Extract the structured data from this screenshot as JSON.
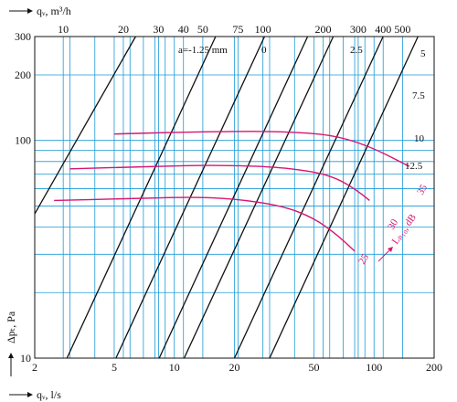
{
  "chart_data": {
    "type": "line",
    "x_axis_bottom": {
      "label": "qᵥ, l/s",
      "scale": "log",
      "range": [
        2,
        200
      ],
      "ticks": [
        2,
        5,
        10,
        20,
        50,
        100,
        200
      ],
      "tick_labels": [
        "2",
        "5",
        "10",
        "20",
        "50",
        "100",
        "200"
      ]
    },
    "x_axis_top": {
      "label": "qᵥ, m³/h",
      "scale": "log",
      "ticks": [
        10,
        20,
        30,
        40,
        50,
        75,
        100,
        200,
        300,
        400,
        500
      ],
      "tick_labels": [
        "10",
        "20",
        "30",
        "40",
        "50",
        "75",
        "100",
        "200",
        "300",
        "400",
        "500"
      ]
    },
    "y_axis": {
      "label": "Δpₜ, Pa",
      "scale": "log",
      "range": [
        10,
        300
      ],
      "ticks": [
        10,
        100,
        200,
        300
      ],
      "tick_labels": [
        "10",
        "100",
        "200",
        "300"
      ]
    },
    "grid": true,
    "damper_lines": {
      "label_prefix": "a=",
      "unit_label": "mm",
      "series": [
        {
          "name": "a=-1.25 mm",
          "points": [
            [
              2,
              46
            ],
            [
              6.4,
              300
            ]
          ]
        },
        {
          "name": "0",
          "points": [
            [
              2.9,
              10
            ],
            [
              16.1,
              300
            ]
          ]
        },
        {
          "name": "2.5",
          "points": [
            [
              5.1,
              10
            ],
            [
              28.3,
              300
            ]
          ]
        },
        {
          "name": "5",
          "points": [
            [
              8.4,
              10
            ],
            [
              46.5,
              300
            ]
          ]
        },
        {
          "name": "7.5",
          "points": [
            [
              11.2,
              10
            ],
            [
              62.5,
              300
            ]
          ]
        },
        {
          "name": "10",
          "points": [
            [
              20,
              10
            ],
            [
              111,
              300
            ]
          ]
        },
        {
          "name": "12.5",
          "points": [
            [
              30,
              10
            ],
            [
              166,
              300
            ]
          ]
        }
      ],
      "labels": [
        "a=-1.25 mm",
        "0",
        "2.5",
        "5",
        "7.5",
        "10",
        "12.5"
      ]
    },
    "sound_curves": {
      "label": "Lₚ₁₀, dB",
      "series": [
        {
          "name": "35",
          "points": [
            [
              5,
              107
            ],
            [
              10,
              109
            ],
            [
              20,
              110
            ],
            [
              30,
              110
            ],
            [
              50,
              108
            ],
            [
              70,
              103
            ],
            [
              100,
              92
            ],
            [
              150,
              76
            ]
          ]
        },
        {
          "name": "30",
          "points": [
            [
              3,
              74
            ],
            [
              8,
              76
            ],
            [
              15,
              77
            ],
            [
              30,
              76
            ],
            [
              50,
              72
            ],
            [
              65,
              67
            ],
            [
              80,
              60
            ],
            [
              95,
              53
            ]
          ]
        },
        {
          "name": "25",
          "points": [
            [
              2.5,
              53
            ],
            [
              6,
              54
            ],
            [
              12,
              55
            ],
            [
              20,
              54
            ],
            [
              35,
              50
            ],
            [
              50,
              44
            ],
            [
              65,
              37
            ],
            [
              80,
              31
            ]
          ]
        }
      ]
    }
  }
}
